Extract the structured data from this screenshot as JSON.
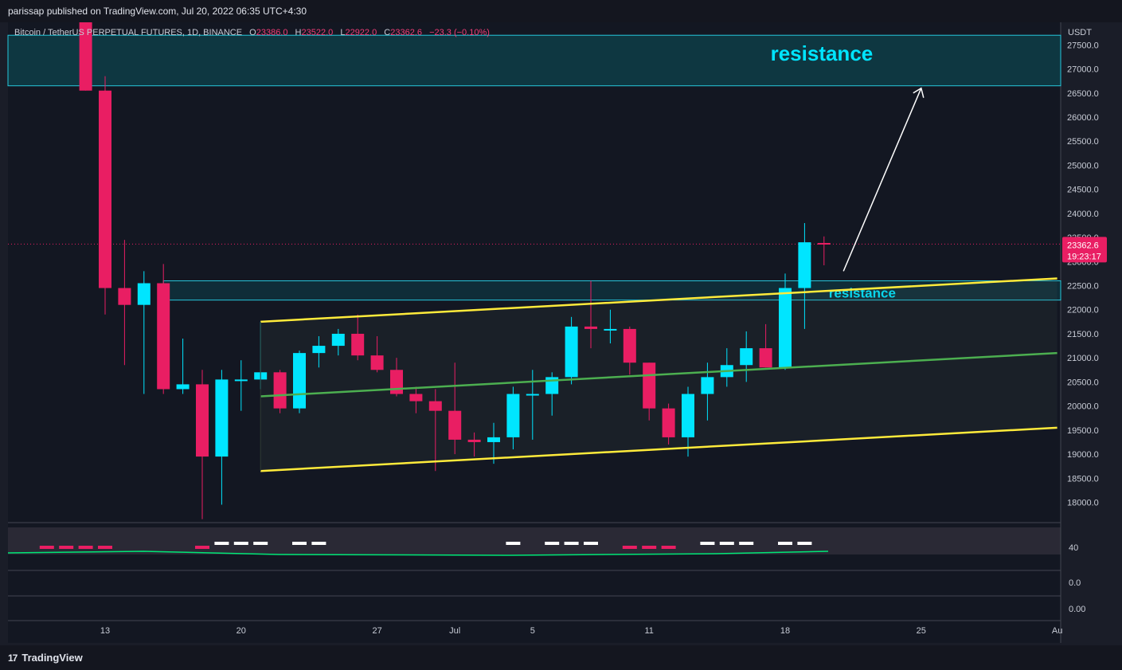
{
  "header": {
    "published": "parissap published on TradingView.com, Jul 20, 2022 06:35 UTC+4:30"
  },
  "legend": {
    "symbol": "Bitcoin / TetherUS PERPETUAL FUTURES, 1D, BINANCE",
    "o_label": "O",
    "o_value": "23386.0",
    "h_label": "H",
    "h_value": "23522.0",
    "l_label": "L",
    "l_value": "22922.0",
    "c_label": "C",
    "c_value": "23362.6",
    "change": "−23.3 (−0.10%)"
  },
  "footer": {
    "brand": "TradingView",
    "logo_glyph": "17"
  },
  "price_tag": {
    "price": "23362.6",
    "countdown": "19:23:17"
  },
  "colors": {
    "up": "#00e5ff",
    "down": "#e91e63",
    "background": "#1a1d28",
    "channel": "#ffeb3b",
    "midline": "#4caf50",
    "zone": "#26c6da",
    "arrow": "#ffffff"
  },
  "chart_data": {
    "type": "candlestick",
    "currency": "USDT",
    "y_ticks": [
      "27500.0",
      "27000.0",
      "26500.0",
      "26000.0",
      "25500.0",
      "25000.0",
      "24500.0",
      "24000.0",
      "23500.0",
      "23000.0",
      "22500.0",
      "22000.0",
      "21500.0",
      "21000.0",
      "20500.0",
      "20000.0",
      "19500.0",
      "19000.0",
      "18500.0",
      "18000.0"
    ],
    "x_ticks": [
      {
        "label": "13",
        "day": "2022-06-13"
      },
      {
        "label": "20",
        "day": "2022-06-20"
      },
      {
        "label": "27",
        "day": "2022-06-27"
      },
      {
        "label": "Jul",
        "day": "2022-07-01"
      },
      {
        "label": "5",
        "day": "2022-07-05"
      },
      {
        "label": "11",
        "day": "2022-07-11"
      },
      {
        "label": "18",
        "day": "2022-07-18"
      },
      {
        "label": "25",
        "day": "2022-07-25"
      },
      {
        "label": "Au",
        "day": "2022-08-01"
      }
    ],
    "x_range": [
      "2022-06-08",
      "2022-08-01"
    ],
    "y_range": [
      17800,
      27700
    ],
    "candles": [
      {
        "date": "2022-06-12",
        "o": 28000,
        "h": 28000,
        "l": 26550,
        "c": 26550
      },
      {
        "date": "2022-06-13",
        "o": 26550,
        "h": 26850,
        "l": 21900,
        "c": 22450
      },
      {
        "date": "2022-06-14",
        "o": 22450,
        "h": 23450,
        "l": 20850,
        "c": 22100
      },
      {
        "date": "2022-06-15",
        "o": 22100,
        "h": 22800,
        "l": 20250,
        "c": 22550
      },
      {
        "date": "2022-06-16",
        "o": 22550,
        "h": 22950,
        "l": 20250,
        "c": 20350
      },
      {
        "date": "2022-06-17",
        "o": 20350,
        "h": 21400,
        "l": 20250,
        "c": 20450
      },
      {
        "date": "2022-06-18",
        "o": 20450,
        "h": 20750,
        "l": 17650,
        "c": 18950
      },
      {
        "date": "2022-06-19",
        "o": 18950,
        "h": 20750,
        "l": 17950,
        "c": 20550
      },
      {
        "date": "2022-06-20",
        "o": 20550,
        "h": 20950,
        "l": 19900,
        "c": 20550
      },
      {
        "date": "2022-06-21",
        "o": 20550,
        "h": 21750,
        "l": 20350,
        "c": 20700
      },
      {
        "date": "2022-06-22",
        "o": 20700,
        "h": 20750,
        "l": 19850,
        "c": 19950
      },
      {
        "date": "2022-06-23",
        "o": 19950,
        "h": 21150,
        "l": 19850,
        "c": 21100
      },
      {
        "date": "2022-06-24",
        "o": 21100,
        "h": 21450,
        "l": 20800,
        "c": 21250
      },
      {
        "date": "2022-06-25",
        "o": 21250,
        "h": 21600,
        "l": 21050,
        "c": 21500
      },
      {
        "date": "2022-06-26",
        "o": 21500,
        "h": 21900,
        "l": 20950,
        "c": 21050
      },
      {
        "date": "2022-06-27",
        "o": 21050,
        "h": 21450,
        "l": 20700,
        "c": 20750
      },
      {
        "date": "2022-06-28",
        "o": 20750,
        "h": 21000,
        "l": 20200,
        "c": 20250
      },
      {
        "date": "2022-06-29",
        "o": 20250,
        "h": 20400,
        "l": 19850,
        "c": 20100
      },
      {
        "date": "2022-06-30",
        "o": 20100,
        "h": 20350,
        "l": 18650,
        "c": 19900
      },
      {
        "date": "2022-07-01",
        "o": 19900,
        "h": 20900,
        "l": 19000,
        "c": 19300
      },
      {
        "date": "2022-07-02",
        "o": 19300,
        "h": 19450,
        "l": 18950,
        "c": 19250
      },
      {
        "date": "2022-07-03",
        "o": 19250,
        "h": 19650,
        "l": 18800,
        "c": 19350
      },
      {
        "date": "2022-07-04",
        "o": 19350,
        "h": 20400,
        "l": 19100,
        "c": 20250
      },
      {
        "date": "2022-07-05",
        "o": 20250,
        "h": 20750,
        "l": 19300,
        "c": 20250
      },
      {
        "date": "2022-07-06",
        "o": 20250,
        "h": 20700,
        "l": 19800,
        "c": 20600
      },
      {
        "date": "2022-07-07",
        "o": 20600,
        "h": 21850,
        "l": 20450,
        "c": 21650
      },
      {
        "date": "2022-07-08",
        "o": 21650,
        "h": 22600,
        "l": 21200,
        "c": 21600
      },
      {
        "date": "2022-07-09",
        "o": 21600,
        "h": 22000,
        "l": 21300,
        "c": 21600
      },
      {
        "date": "2022-07-10",
        "o": 21600,
        "h": 21650,
        "l": 20650,
        "c": 20900
      },
      {
        "date": "2022-07-11",
        "o": 20900,
        "h": 20900,
        "l": 19700,
        "c": 19950
      },
      {
        "date": "2022-07-12",
        "o": 19950,
        "h": 20050,
        "l": 19200,
        "c": 19350
      },
      {
        "date": "2022-07-13",
        "o": 19350,
        "h": 20400,
        "l": 18950,
        "c": 20250
      },
      {
        "date": "2022-07-14",
        "o": 20250,
        "h": 20900,
        "l": 19700,
        "c": 20600
      },
      {
        "date": "2022-07-15",
        "o": 20600,
        "h": 21200,
        "l": 20400,
        "c": 20850
      },
      {
        "date": "2022-07-16",
        "o": 20850,
        "h": 21550,
        "l": 20500,
        "c": 21200
      },
      {
        "date": "2022-07-17",
        "o": 21200,
        "h": 21700,
        "l": 20800,
        "c": 20800
      },
      {
        "date": "2022-07-18",
        "o": 20800,
        "h": 22750,
        "l": 20750,
        "c": 22450
      },
      {
        "date": "2022-07-19",
        "o": 22450,
        "h": 23800,
        "l": 21600,
        "c": 23400
      },
      {
        "date": "2022-07-20",
        "o": 23386,
        "h": 23522,
        "l": 22922,
        "c": 23362.6
      }
    ],
    "annotations": {
      "resistance_zones": [
        {
          "label": "resistance",
          "top": 27700,
          "bottom": 26650
        },
        {
          "label": "resistance",
          "top": 22600,
          "bottom": 22200
        }
      ],
      "channel_upper": {
        "start": {
          "date": "2022-06-21",
          "price": 21750
        },
        "end": {
          "date": "2022-08-01",
          "price": 22650
        }
      },
      "channel_lower": {
        "start": {
          "date": "2022-06-21",
          "price": 18650
        },
        "end": {
          "date": "2022-08-01",
          "price": 19550
        }
      },
      "channel_mid": {
        "start": {
          "date": "2022-06-21",
          "price": 20200
        },
        "end": {
          "date": "2022-08-01",
          "price": 21100
        }
      },
      "arrow": {
        "from": {
          "date": "2022-07-21",
          "price": 22800
        },
        "to": {
          "date": "2022-07-25",
          "price": 26600
        }
      }
    },
    "oscillator": {
      "y_ticks": [
        "40",
        "0.0",
        "0.00"
      ],
      "histogram_up_dates": [
        "2022-06-19",
        "2022-06-20",
        "2022-06-21",
        "2022-06-23",
        "2022-06-24",
        "2022-07-04",
        "2022-07-06",
        "2022-07-07",
        "2022-07-08",
        "2022-07-14",
        "2022-07-15",
        "2022-07-16",
        "2022-07-18",
        "2022-07-19"
      ],
      "histogram_down_dates": [
        "2022-06-10",
        "2022-06-11",
        "2022-06-12",
        "2022-06-13",
        "2022-06-18",
        "2022-07-10",
        "2022-07-11",
        "2022-07-12"
      ]
    }
  }
}
